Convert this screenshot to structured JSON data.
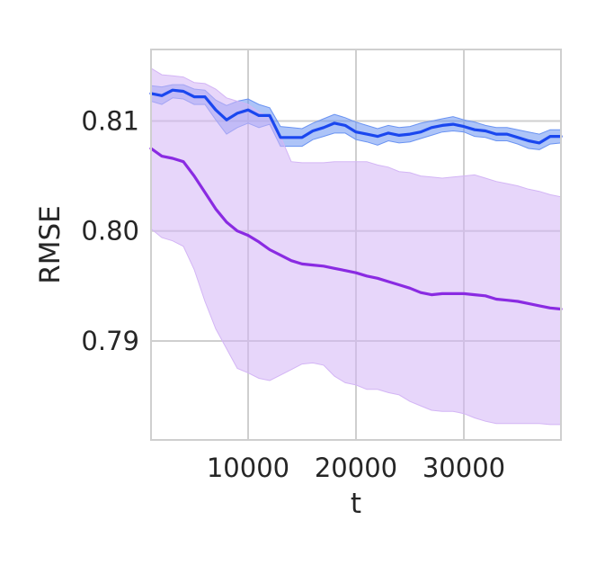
{
  "chart_data": {
    "type": "line",
    "title": "",
    "xlabel": "t",
    "ylabel": "RMSE",
    "xlim": [
      1000,
      39000
    ],
    "ylim": [
      0.781,
      0.8165
    ],
    "xticks": [
      10000,
      20000,
      30000
    ],
    "xtick_labels": [
      "10000",
      "20000",
      "30000"
    ],
    "yticks": [
      0.79,
      0.8,
      0.81
    ],
    "ytick_labels": [
      "0.79",
      "0.80",
      "0.81"
    ],
    "grid": true,
    "legend": "none",
    "x": [
      1000,
      2000,
      3000,
      4000,
      5000,
      6000,
      7000,
      8000,
      9000,
      10000,
      11000,
      12000,
      13000,
      14000,
      15000,
      16000,
      17000,
      18000,
      19000,
      20000,
      21000,
      22000,
      23000,
      24000,
      25000,
      26000,
      27000,
      28000,
      29000,
      30000,
      31000,
      32000,
      33000,
      34000,
      35000,
      36000,
      37000,
      38000,
      39000
    ],
    "series": [
      {
        "color": "#1a47ef",
        "band_color": "#6a93f2",
        "values": [
          0.8125,
          0.8123,
          0.8128,
          0.8127,
          0.8122,
          0.8122,
          0.811,
          0.8101,
          0.8107,
          0.811,
          0.8105,
          0.8105,
          0.8085,
          0.8085,
          0.8085,
          0.8091,
          0.8094,
          0.8098,
          0.8096,
          0.809,
          0.8088,
          0.8086,
          0.8089,
          0.8087,
          0.8088,
          0.809,
          0.8094,
          0.8096,
          0.8097,
          0.8095,
          0.8092,
          0.8091,
          0.8088,
          0.8088,
          0.8085,
          0.8082,
          0.808,
          0.8086,
          0.8086
        ],
        "upper": [
          0.8132,
          0.8131,
          0.8133,
          0.8133,
          0.8129,
          0.8128,
          0.8119,
          0.8114,
          0.8118,
          0.812,
          0.8115,
          0.8112,
          0.8095,
          0.8094,
          0.8093,
          0.8098,
          0.8102,
          0.8106,
          0.8103,
          0.8099,
          0.8096,
          0.8093,
          0.8096,
          0.8094,
          0.8095,
          0.8098,
          0.81,
          0.8102,
          0.8104,
          0.8101,
          0.8099,
          0.8096,
          0.8094,
          0.8094,
          0.8092,
          0.809,
          0.8088,
          0.8092,
          0.8092
        ],
        "lower": [
          0.8118,
          0.8115,
          0.8121,
          0.812,
          0.8115,
          0.8115,
          0.8101,
          0.8088,
          0.8094,
          0.8098,
          0.8094,
          0.8097,
          0.8077,
          0.8077,
          0.8077,
          0.8083,
          0.8086,
          0.8089,
          0.8089,
          0.8083,
          0.8081,
          0.8078,
          0.8082,
          0.808,
          0.8081,
          0.8084,
          0.8087,
          0.809,
          0.8091,
          0.809,
          0.8086,
          0.8085,
          0.8082,
          0.8082,
          0.8079,
          0.8075,
          0.8074,
          0.8079,
          0.808
        ]
      },
      {
        "color": "#8a2be2",
        "band_color": "#d3b5f5",
        "values": [
          0.8075,
          0.8068,
          0.8066,
          0.8063,
          0.805,
          0.8035,
          0.802,
          0.8008,
          0.8,
          0.7996,
          0.799,
          0.7983,
          0.7978,
          0.7973,
          0.797,
          0.7969,
          0.7968,
          0.7966,
          0.7964,
          0.7962,
          0.7959,
          0.7957,
          0.7954,
          0.7951,
          0.7948,
          0.7944,
          0.7942,
          0.7943,
          0.7943,
          0.7943,
          0.7942,
          0.7941,
          0.7938,
          0.7937,
          0.7936,
          0.7934,
          0.7932,
          0.793,
          0.7929
        ],
        "upper": [
          0.8148,
          0.8142,
          0.8141,
          0.814,
          0.8135,
          0.8134,
          0.8129,
          0.8121,
          0.8118,
          0.8115,
          0.8108,
          0.8104,
          0.8086,
          0.8063,
          0.8062,
          0.8062,
          0.8062,
          0.8063,
          0.8063,
          0.8063,
          0.8063,
          0.806,
          0.8058,
          0.8054,
          0.8053,
          0.805,
          0.8049,
          0.8048,
          0.8049,
          0.805,
          0.8051,
          0.8048,
          0.8045,
          0.8043,
          0.8041,
          0.8038,
          0.8036,
          0.8033,
          0.8031
        ],
        "lower": [
          0.8002,
          0.7994,
          0.7991,
          0.7986,
          0.7965,
          0.7936,
          0.7911,
          0.7893,
          0.7875,
          0.7871,
          0.7866,
          0.7864,
          0.7869,
          0.7874,
          0.7879,
          0.788,
          0.7878,
          0.7868,
          0.7862,
          0.786,
          0.7856,
          0.7856,
          0.7853,
          0.7851,
          0.7845,
          0.7841,
          0.7837,
          0.7836,
          0.7836,
          0.7834,
          0.783,
          0.7827,
          0.7825,
          0.7825,
          0.7825,
          0.7825,
          0.7825,
          0.7824,
          0.7824
        ]
      }
    ]
  }
}
